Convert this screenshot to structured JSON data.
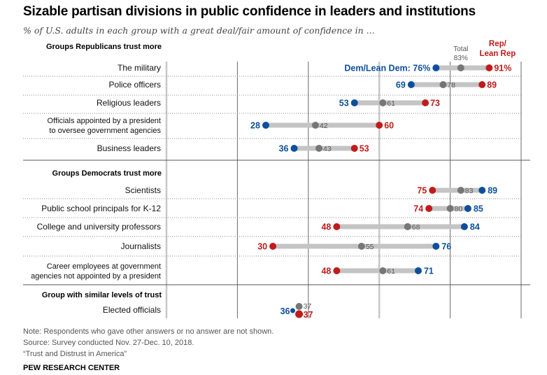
{
  "title": "Sizable partisan divisions in public confidence in leaders and institutions",
  "subtitle": "% of U.S. adults in each group with a great deal/fair amount of confidence in ...",
  "colors": {
    "rep": "#c01b1b",
    "dem": "#0d4f9c",
    "total": "#767676",
    "bar": "#c4c4c4"
  },
  "chart_data": {
    "type": "dot-range",
    "title": "Sizable partisan divisions in public confidence in leaders and institutions",
    "subtitle": "% of U.S. adults in each group with a great deal/fair amount of confidence in ...",
    "xlim": [
      0,
      100
    ],
    "gridlines": [
      0,
      20,
      40,
      60,
      80,
      100
    ],
    "legend": {
      "total": "Total",
      "total_value": "83%",
      "rep": "Rep/ Lean Rep",
      "rep_line1": "Rep/",
      "rep_line2": "Lean Rep",
      "rep_value": "91%",
      "dem": "Dem/Lean Dem: 76%"
    },
    "sections": [
      {
        "heading": "Groups Republicans trust more",
        "rows": [
          {
            "label": [
              "The military"
            ],
            "dem": 76,
            "total": 83,
            "rep": 91
          },
          {
            "label": [
              "Police officers"
            ],
            "dem": 69,
            "total": 78,
            "rep": 89
          },
          {
            "label": [
              "Religious leaders"
            ],
            "dem": 53,
            "total": 61,
            "rep": 73
          },
          {
            "label": [
              "Officials appointed by a president",
              "to oversee government agencies"
            ],
            "dem": 28,
            "total": 42,
            "rep": 60
          },
          {
            "label": [
              "Business leaders"
            ],
            "dem": 36,
            "total": 43,
            "rep": 53
          }
        ]
      },
      {
        "heading": "Groups Democrats trust more",
        "rows": [
          {
            "label": [
              "Scientists"
            ],
            "dem": 89,
            "total": 83,
            "rep": 75
          },
          {
            "label": [
              "Public school principals for K-12"
            ],
            "dem": 85,
            "total": 80,
            "rep": 74
          },
          {
            "label": [
              "College and university professors"
            ],
            "dem": 84,
            "total": 68,
            "rep": 48
          },
          {
            "label": [
              "Journalists"
            ],
            "dem": 76,
            "total": 55,
            "rep": 30
          },
          {
            "label": [
              "Career employees at government",
              "agencies not appointed by a president"
            ],
            "dem": 71,
            "total": 61,
            "rep": 48
          }
        ]
      },
      {
        "heading": "Group with similar levels of trust",
        "rows": [
          {
            "label": [
              "Elected officials"
            ],
            "dem": 36,
            "total": 37,
            "rep": 37
          }
        ]
      }
    ]
  },
  "notes": {
    "note": "Note: Respondents who gave other answers or no answer are not shown.",
    "source": "Source: Survey conducted Nov. 27-Dec. 10, 2018.",
    "report": "“Trust and Distrust in America”",
    "brand": "PEW RESEARCH CENTER"
  }
}
